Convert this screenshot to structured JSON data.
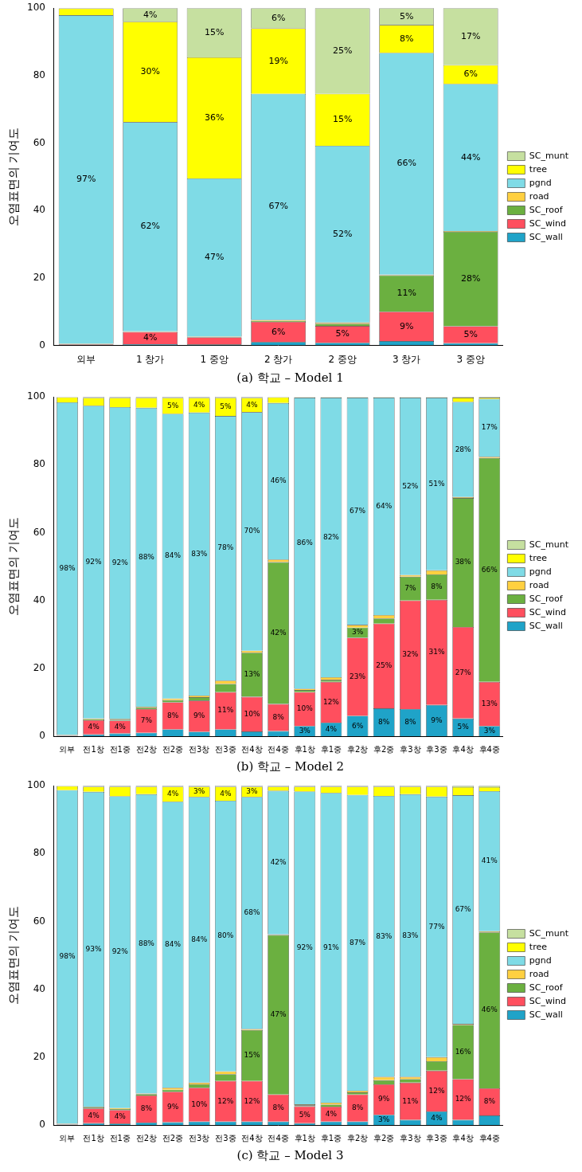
{
  "chart_data": [
    {
      "type": "bar",
      "title": "(a) 학교 – Model 1",
      "y_label": "오염표면의 기여도",
      "categories": [
        "외부",
        "1 창가",
        "1 중앙",
        "2 창가",
        "2 중앙",
        "3 창가",
        "3 중앙"
      ],
      "ylim": [
        0,
        100
      ],
      "yticks": [
        0,
        20,
        40,
        60,
        80,
        100
      ],
      "stacked": true,
      "legend": "right",
      "data_labels": true,
      "grid": false,
      "series": [
        {
          "name": "SC_wall",
          "color": "#1fa3c8",
          "values": [
            0.1,
            0.4,
            0.3,
            1.0,
            0.8,
            1.3,
            0.7
          ],
          "value_labels": [
            null,
            null,
            null,
            null,
            null,
            null,
            null
          ]
        },
        {
          "name": "SC_wind",
          "color": "#ff4f5e",
          "values": [
            0.2,
            3.6,
            2.1,
            6.0,
            5.0,
            8.7,
            5.0
          ],
          "value_labels": [
            null,
            "4%",
            null,
            "6%",
            "5%",
            "9%",
            "5%"
          ]
        },
        {
          "name": "SC_roof",
          "color": "#6bb040",
          "values": [
            0.1,
            0.1,
            0.1,
            0.3,
            0.6,
            10.8,
            28.0
          ],
          "value_labels": [
            null,
            null,
            null,
            null,
            null,
            "11%",
            "28%"
          ]
        },
        {
          "name": "road",
          "color": "#ffd040",
          "values": [
            0.1,
            0.1,
            0.1,
            0.3,
            0.4,
            0.2,
            0.2
          ],
          "value_labels": [
            null,
            null,
            null,
            null,
            null,
            null,
            null
          ]
        },
        {
          "name": "pgnd",
          "color": "#7fdbe6",
          "values": [
            97.4,
            62.0,
            46.9,
            67.0,
            52.4,
            65.7,
            43.6
          ],
          "value_labels": [
            "97%",
            "62%",
            "47%",
            "67%",
            "52%",
            "66%",
            "44%"
          ]
        },
        {
          "name": "tree",
          "color": "#ffff00",
          "values": [
            2.0,
            29.8,
            35.9,
            19.4,
            15.4,
            8.3,
            5.6
          ],
          "value_labels": [
            null,
            "30%",
            "36%",
            "19%",
            "15%",
            "8%",
            "6%"
          ]
        },
        {
          "name": "SC_munt",
          "color": "#c6e0a0",
          "values": [
            0.1,
            4.0,
            14.6,
            6.0,
            25.4,
            5.0,
            16.9
          ],
          "value_labels": [
            null,
            "4%",
            "15%",
            "6%",
            "25%",
            "5%",
            "17%"
          ]
        }
      ]
    },
    {
      "type": "bar",
      "title": "(b) 학교 – Model 2",
      "y_label": "오염표면의 기여도",
      "categories": [
        "외부",
        "전1창",
        "전1중",
        "전2창",
        "전2중",
        "전3창",
        "전3중",
        "전4창",
        "전4중",
        "후1창",
        "후1중",
        "후2창",
        "후2중",
        "후3창",
        "후3중",
        "후4창",
        "후4중"
      ],
      "ylim": [
        0,
        100
      ],
      "yticks": [
        0,
        20,
        40,
        60,
        80,
        100
      ],
      "stacked": true,
      "legend": "right",
      "data_labels": true,
      "grid": false,
      "series": [
        {
          "name": "SC_wall",
          "color": "#1fa3c8",
          "values": [
            0.1,
            0.5,
            0.8,
            1.0,
            2.0,
            1.3,
            2.0,
            1.4,
            1.5,
            3.0,
            4.0,
            6.0,
            8.2,
            8.0,
            9.2,
            5.2,
            3.0
          ],
          "value_labels": [
            null,
            null,
            null,
            null,
            null,
            null,
            null,
            null,
            null,
            "3%",
            "4%",
            "6%",
            "8%",
            "8%",
            "9%",
            "5%",
            "3%"
          ]
        },
        {
          "name": "SC_wind",
          "color": "#ff4f5e",
          "values": [
            0.2,
            4.2,
            3.8,
            7.0,
            8.0,
            9.2,
            11.0,
            10.2,
            8.0,
            10.0,
            12.0,
            23.0,
            25.0,
            32.0,
            31.0,
            27.0,
            13.0
          ],
          "value_labels": [
            null,
            "4%",
            "4%",
            "7%",
            "8%",
            "9%",
            "11%",
            "10%",
            "8%",
            "10%",
            "12%",
            "23%",
            "25%",
            "32%",
            "31%",
            "27%",
            "13%"
          ]
        },
        {
          "name": "SC_roof",
          "color": "#6bb040",
          "values": [
            0.0,
            0.3,
            0.3,
            0.4,
            0.6,
            1.0,
            2.4,
            13.0,
            41.8,
            0.6,
            0.6,
            3.0,
            1.5,
            7.0,
            7.5,
            38.0,
            66.0
          ],
          "value_labels": [
            null,
            null,
            null,
            null,
            null,
            null,
            null,
            "13%",
            "42%",
            null,
            null,
            "3%",
            null,
            "7%",
            "8%",
            "38%",
            "66%"
          ]
        },
        {
          "name": "road",
          "color": "#ffd040",
          "values": [
            0.1,
            0.2,
            0.2,
            0.3,
            0.5,
            0.5,
            1.0,
            0.6,
            0.8,
            0.4,
            0.8,
            0.8,
            1.0,
            0.5,
            1.2,
            0.3,
            0.4
          ],
          "value_labels": [
            null,
            null,
            null,
            null,
            null,
            null,
            null,
            null,
            null,
            null,
            null,
            null,
            null,
            null,
            null,
            null,
            null
          ]
        },
        {
          "name": "pgnd",
          "color": "#7fdbe6",
          "values": [
            98.0,
            92.2,
            91.9,
            88.1,
            83.9,
            83.4,
            78.0,
            70.3,
            46.1,
            85.8,
            82.4,
            67.0,
            64.1,
            52.3,
            50.9,
            28.0,
            17.0
          ],
          "value_labels": [
            "98%",
            "92%",
            "92%",
            "88%",
            "84%",
            "83%",
            "78%",
            "70%",
            "46%",
            "86%",
            "82%",
            "67%",
            "64%",
            "52%",
            "51%",
            "28%",
            "17%"
          ]
        },
        {
          "name": "tree",
          "color": "#ffff00",
          "values": [
            1.5,
            2.3,
            2.7,
            2.9,
            4.7,
            4.3,
            5.3,
            4.2,
            1.7,
            0.1,
            0.1,
            0.1,
            0.1,
            0.1,
            0.1,
            1.3,
            0.4
          ],
          "value_labels": [
            null,
            null,
            null,
            null,
            "5%",
            "4%",
            "5%",
            "4%",
            null,
            null,
            null,
            null,
            null,
            null,
            null,
            null,
            null
          ]
        },
        {
          "name": "SC_munt",
          "color": "#c6e0a0",
          "values": [
            0.1,
            0.3,
            0.3,
            0.3,
            0.3,
            0.3,
            0.3,
            0.3,
            0.1,
            0.1,
            0.1,
            0.1,
            0.1,
            0.1,
            0.1,
            0.2,
            0.2
          ],
          "value_labels": [
            null,
            null,
            null,
            null,
            null,
            null,
            null,
            null,
            null,
            null,
            null,
            null,
            null,
            null,
            null,
            null,
            null
          ]
        }
      ]
    },
    {
      "type": "bar",
      "title": "(c) 학교 – Model 3",
      "y_label": "오염표면의 기여도",
      "categories": [
        "외부",
        "전1창",
        "전1중",
        "전2창",
        "전2중",
        "전3창",
        "전3중",
        "전4창",
        "전4중",
        "후1창",
        "후1중",
        "후2창",
        "후2중",
        "후3창",
        "후3중",
        "후4창",
        "후4중"
      ],
      "ylim": [
        0,
        100
      ],
      "yticks": [
        0,
        20,
        40,
        60,
        80,
        100
      ],
      "stacked": true,
      "legend": "right",
      "data_labels": true,
      "grid": false,
      "series": [
        {
          "name": "SC_wall",
          "color": "#1fa3c8",
          "values": [
            0.1,
            0.5,
            0.4,
            0.7,
            0.8,
            1.0,
            1.0,
            1.0,
            1.0,
            0.5,
            1.0,
            1.0,
            3.0,
            1.5,
            4.0,
            1.5,
            2.8
          ],
          "value_labels": [
            null,
            null,
            null,
            null,
            null,
            null,
            null,
            null,
            null,
            null,
            null,
            null,
            "3%",
            null,
            "4%",
            null,
            null
          ]
        },
        {
          "name": "SC_wind",
          "color": "#ff4f5e",
          "values": [
            0.2,
            4.4,
            4.0,
            8.0,
            9.0,
            10.0,
            12.0,
            12.0,
            8.0,
            5.0,
            4.4,
            8.0,
            9.0,
            11.0,
            12.0,
            12.0,
            8.0
          ],
          "value_labels": [
            null,
            "4%",
            "4%",
            "8%",
            "9%",
            "10%",
            "12%",
            "12%",
            "8%",
            "5%",
            "4%",
            "8%",
            "9%",
            "11%",
            "12%",
            "12%",
            "8%"
          ]
        },
        {
          "name": "SC_roof",
          "color": "#6bb040",
          "values": [
            0.0,
            0.3,
            0.3,
            0.4,
            0.6,
            1.0,
            2.0,
            15.0,
            47.0,
            0.3,
            0.6,
            0.6,
            1.2,
            1.0,
            2.8,
            16.0,
            46.0
          ],
          "value_labels": [
            null,
            null,
            null,
            null,
            null,
            null,
            null,
            "15%",
            "47%",
            null,
            null,
            null,
            null,
            null,
            null,
            "16%",
            "46%"
          ]
        },
        {
          "name": "road",
          "color": "#ffd040",
          "values": [
            0.1,
            0.2,
            0.3,
            0.2,
            0.6,
            0.5,
            0.8,
            0.3,
            0.2,
            0.3,
            0.6,
            0.5,
            1.0,
            0.7,
            1.2,
            0.3,
            0.3
          ],
          "value_labels": [
            null,
            null,
            null,
            null,
            null,
            null,
            null,
            null,
            null,
            null,
            null,
            null,
            null,
            null,
            null,
            null,
            null
          ]
        },
        {
          "name": "pgnd",
          "color": "#7fdbe6",
          "values": [
            98.3,
            92.8,
            91.9,
            88.2,
            84.3,
            84.2,
            79.8,
            68.4,
            42.3,
            92.2,
            91.3,
            87.2,
            82.8,
            83.3,
            76.8,
            67.4,
            41.3
          ],
          "value_labels": [
            "98%",
            "93%",
            "92%",
            "88%",
            "84%",
            "84%",
            "80%",
            "68%",
            "42%",
            "92%",
            "91%",
            "87%",
            "83%",
            "83%",
            "77%",
            "67%",
            "41%"
          ]
        },
        {
          "name": "tree",
          "color": "#ffff00",
          "values": [
            1.2,
            1.5,
            2.8,
            2.2,
            4.4,
            3.0,
            4.1,
            3.0,
            1.2,
            1.4,
            1.8,
            2.4,
            2.7,
            2.2,
            2.9,
            2.4,
            1.2
          ],
          "value_labels": [
            null,
            null,
            null,
            null,
            "4%",
            "3%",
            "4%",
            "3%",
            null,
            null,
            null,
            null,
            null,
            null,
            null,
            null,
            null
          ]
        },
        {
          "name": "SC_munt",
          "color": "#c6e0a0",
          "values": [
            0.1,
            0.3,
            0.3,
            0.3,
            0.3,
            0.3,
            0.3,
            0.3,
            0.3,
            0.3,
            0.3,
            0.3,
            0.3,
            0.3,
            0.3,
            0.4,
            0.4
          ],
          "value_labels": [
            null,
            null,
            null,
            null,
            null,
            null,
            null,
            null,
            null,
            null,
            null,
            null,
            null,
            null,
            null,
            null,
            null
          ]
        }
      ]
    }
  ]
}
